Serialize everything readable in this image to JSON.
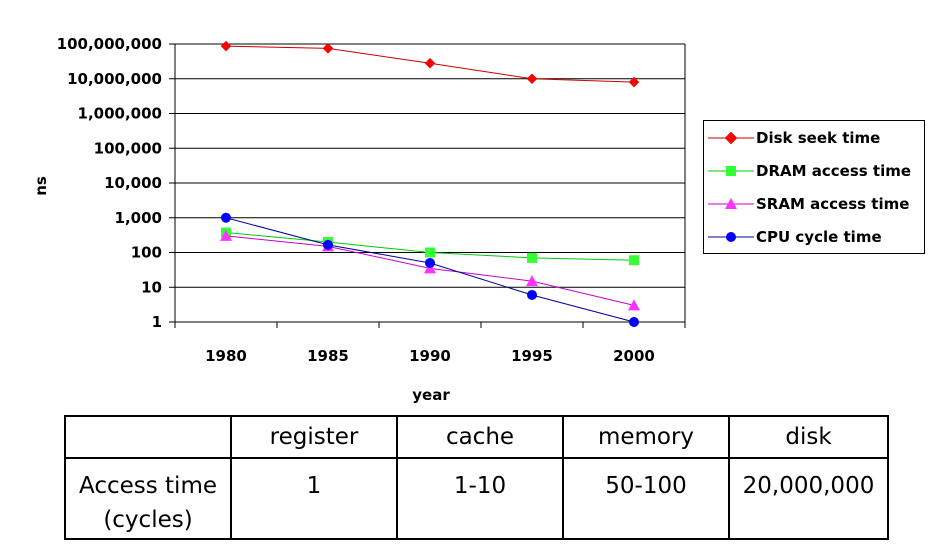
{
  "chart_data": {
    "type": "line",
    "title": "",
    "xlabel": "year",
    "ylabel": "ns",
    "y_scale": "log",
    "ylim": [
      1,
      100000000
    ],
    "categories": [
      "1980",
      "1985",
      "1990",
      "1995",
      "2000"
    ],
    "y_ticks": [
      1,
      10,
      100,
      1000,
      10000,
      100000,
      1000000,
      10000000,
      100000000
    ],
    "y_tick_labels": [
      "1",
      "10",
      "100",
      "1,000",
      "10,000",
      "100,000",
      "1,000,000",
      "10,000,000",
      "100,000,000"
    ],
    "grid": "horizontal",
    "legend_position": "right",
    "series": [
      {
        "name": "Disk seek time",
        "values": [
          87000000,
          75000000,
          28000000,
          10000000,
          8000000
        ],
        "color": "#cc0000",
        "marker_color": "#ff0000",
        "marker": "diamond"
      },
      {
        "name": "DRAM access time",
        "values": [
          375,
          200,
          100,
          70,
          60
        ],
        "color": "#00cc00",
        "marker_color": "#33ff33",
        "marker": "square"
      },
      {
        "name": "SRAM access time",
        "values": [
          300,
          150,
          35,
          15,
          3
        ],
        "color": "#cc00cc",
        "marker_color": "#ff33ff",
        "marker": "triangle"
      },
      {
        "name": "CPU cycle time",
        "values": [
          1000,
          166,
          50,
          6,
          1
        ],
        "color": "#000099",
        "marker_color": "#0000ff",
        "marker": "circle"
      }
    ]
  },
  "table": {
    "headers": [
      "",
      "register",
      "cache",
      "memory",
      "disk"
    ],
    "row": {
      "label_line1": "Access time",
      "label_line2": "(cycles)",
      "values": [
        "1",
        "1-10",
        "50-100",
        "20,000,000"
      ]
    }
  }
}
